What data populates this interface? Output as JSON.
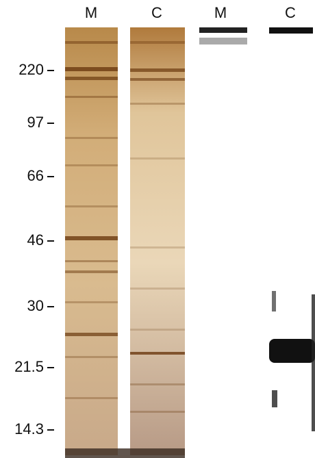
{
  "lanes": [
    "M",
    "C",
    "M",
    "C"
  ],
  "markers": [
    "220",
    "97",
    "66",
    "46",
    "30",
    "21.5",
    "14.3"
  ]
}
